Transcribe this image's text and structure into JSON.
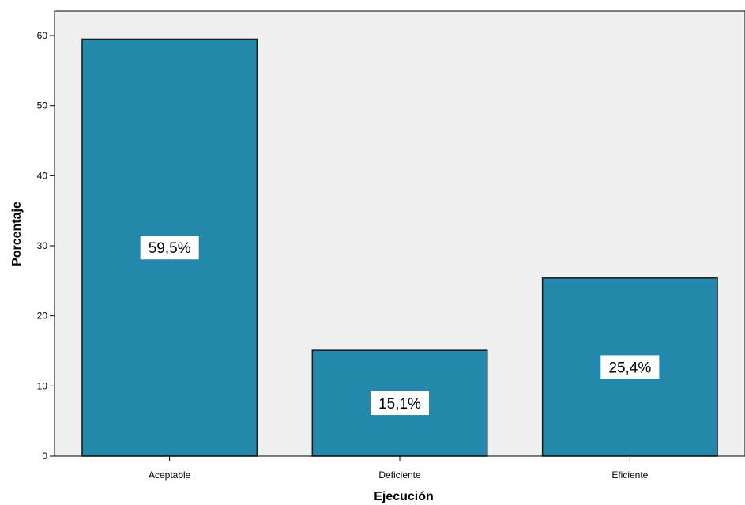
{
  "chart_data": {
    "type": "bar",
    "title": "",
    "xlabel": "Ejecución",
    "ylabel": "Porcentaje",
    "categories": [
      "Aceptable",
      "Deficiente",
      "Eficiente"
    ],
    "values": [
      59.5,
      15.1,
      25.4
    ],
    "data_labels": [
      "59,5%",
      "15,1%",
      "25,4%"
    ],
    "y_ticks": [
      "0",
      "10",
      "20",
      "30",
      "40",
      "50",
      "60"
    ],
    "ylim": [
      0,
      63.5
    ],
    "grid": false,
    "colors": {
      "bar": "#2388ab",
      "bar_edge": "#1a1a1a",
      "plot_background": "#f0f0f0"
    }
  }
}
